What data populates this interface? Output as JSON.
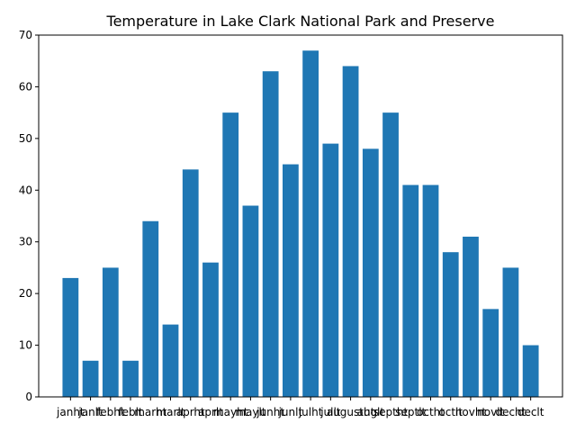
{
  "chart_data": {
    "type": "bar",
    "title": "Temperature in Lake Clark National Park and Preserve",
    "xlabel": "",
    "ylabel": "",
    "ylim": [
      0,
      70
    ],
    "yticks": [
      0,
      10,
      20,
      30,
      40,
      50,
      60,
      70
    ],
    "grid": false,
    "bar_color": "#1f77b4",
    "categories": [
      "janht",
      "janlt",
      "febht",
      "feblt",
      "marht",
      "marlt",
      "aprht",
      "aprlt",
      "mayht",
      "maylt",
      "junht",
      "junlt",
      "julht",
      "jullt",
      "augustht",
      "auglt",
      "septht",
      "septlt",
      "octht",
      "octlt",
      "novht",
      "novlt",
      "decht",
      "declt"
    ],
    "values": [
      23,
      7,
      25,
      7,
      34,
      14,
      44,
      26,
      55,
      37,
      63,
      45,
      67,
      49,
      64,
      48,
      55,
      41,
      41,
      28,
      31,
      17,
      25,
      10
    ]
  }
}
